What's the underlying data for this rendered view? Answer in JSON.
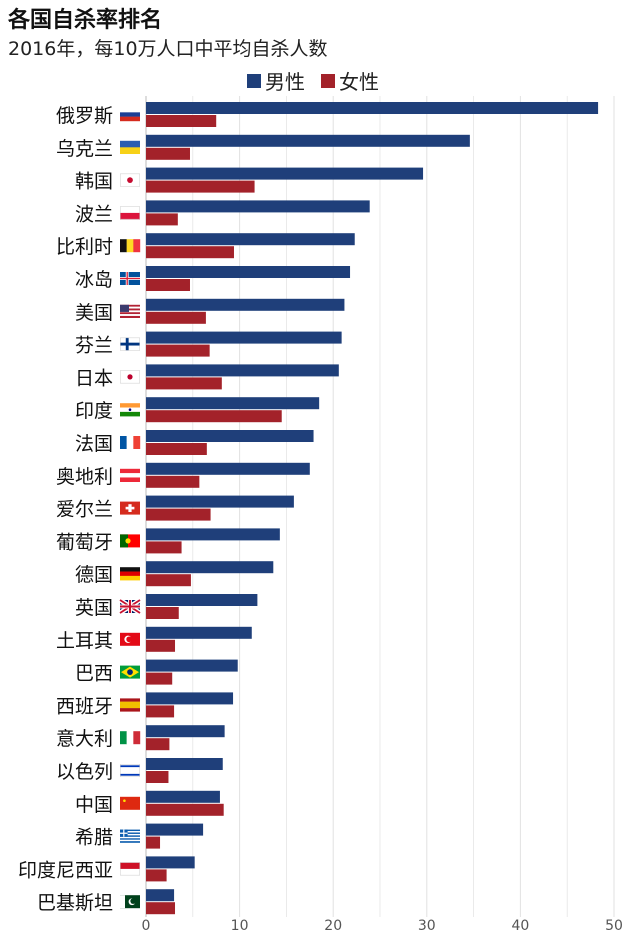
{
  "header": {
    "title": "各国自杀率排名",
    "subtitle": "2016年，每10万人口中平均自杀人数"
  },
  "colors": {
    "male": "#1f3f7a",
    "female": "#a3222a",
    "grid": "#e2e2e2"
  },
  "chart_data": {
    "type": "bar",
    "orientation": "horizontal",
    "title": "各国自杀率排名",
    "subtitle": "2016年，每10万人口中平均自杀人数",
    "categories": [
      "俄罗斯",
      "乌克兰",
      "韩国",
      "波兰",
      "比利时",
      "冰岛",
      "美国",
      "芬兰",
      "日本",
      "印度",
      "法国",
      "奥地利",
      "爱尔兰",
      "葡萄牙",
      "德国",
      "英国",
      "土耳其",
      "巴西",
      "西班牙",
      "意大利",
      "以色列",
      "中国",
      "希腊",
      "印度尼西亚",
      "巴基斯坦"
    ],
    "series": [
      {
        "name": "男性",
        "values": [
          48.3,
          34.6,
          29.6,
          23.9,
          22.3,
          21.8,
          21.2,
          20.9,
          20.6,
          18.5,
          17.9,
          17.5,
          15.8,
          14.3,
          13.6,
          11.9,
          11.3,
          9.8,
          9.3,
          8.4,
          8.2,
          7.9,
          6.1,
          5.2,
          3.0
        ]
      },
      {
        "name": "女性",
        "values": [
          7.5,
          4.7,
          11.6,
          3.4,
          9.4,
          4.7,
          6.4,
          6.8,
          8.1,
          14.5,
          6.5,
          5.7,
          6.9,
          3.8,
          4.8,
          3.5,
          3.1,
          2.8,
          3.0,
          2.5,
          2.4,
          8.3,
          1.5,
          2.2,
          3.1
        ]
      }
    ],
    "flags": [
      "ru",
      "ua",
      "kr",
      "pl",
      "be",
      "is",
      "us",
      "fi",
      "jp",
      "in",
      "fr",
      "at",
      "ch",
      "pt",
      "de",
      "gb",
      "tr",
      "br",
      "es",
      "it",
      "il",
      "cn",
      "gr",
      "id",
      "pk"
    ],
    "x_ticks": [
      "0",
      "10",
      "20",
      "30",
      "40",
      "50"
    ],
    "xlim": [
      0,
      50
    ],
    "grid": true,
    "legend_position": "top"
  }
}
